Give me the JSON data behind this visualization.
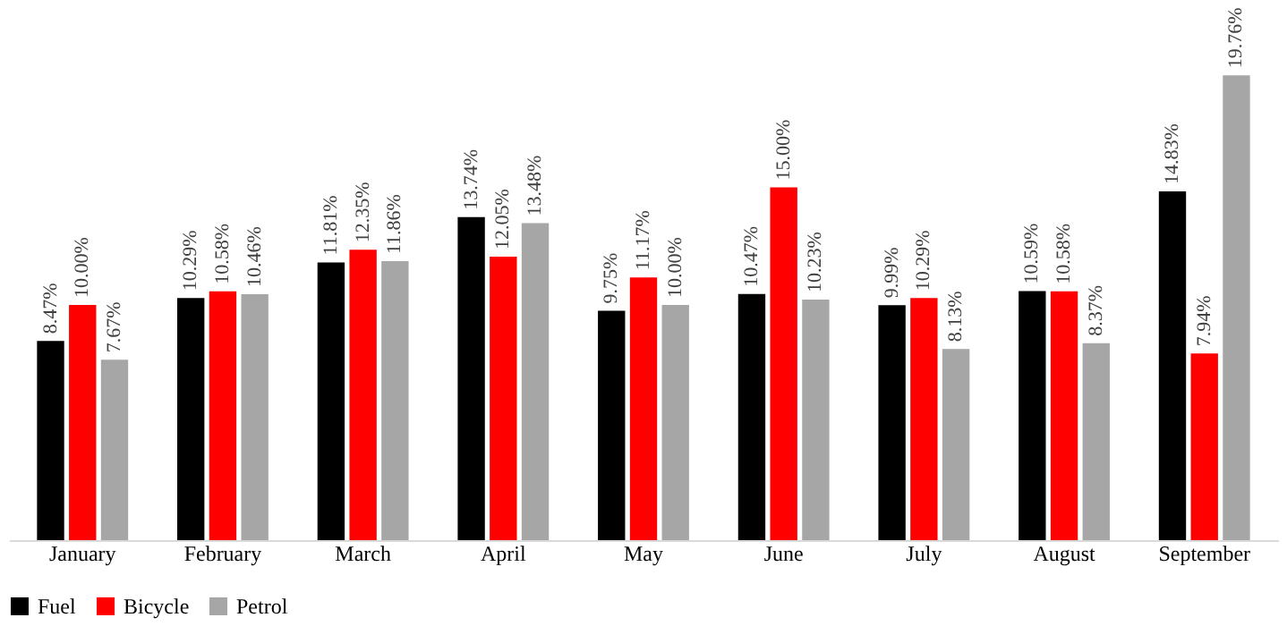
{
  "chart_data": {
    "type": "bar",
    "categories": [
      "January",
      "February",
      "March",
      "April",
      "May",
      "June",
      "July",
      "August",
      "September"
    ],
    "series": [
      {
        "name": "Fuel",
        "color": "#000000",
        "values": [
          8.47,
          10.29,
          11.81,
          13.74,
          9.75,
          10.47,
          9.99,
          10.59,
          14.83
        ],
        "value_labels": [
          "8.47%",
          "10.29%",
          "11.81%",
          "13.74%",
          "9.75%",
          "10.47%",
          "9.99%",
          "10.59%",
          "14.83%"
        ]
      },
      {
        "name": "Bicycle",
        "color": "#ff0000",
        "values": [
          10.0,
          10.58,
          12.35,
          12.05,
          11.17,
          15.0,
          10.29,
          10.58,
          7.94
        ],
        "value_labels": [
          "10.00%",
          "10.58%",
          "12.35%",
          "12.05%",
          "11.17%",
          "15.00%",
          "10.29%",
          "10.58%",
          "7.94%"
        ]
      },
      {
        "name": "Petrol",
        "color": "#a6a6a6",
        "values": [
          7.67,
          10.46,
          11.86,
          13.48,
          10.0,
          10.23,
          8.13,
          8.37,
          19.76
        ],
        "value_labels": [
          "7.67%",
          "10.46%",
          "11.86%",
          "13.48%",
          "10.00%",
          "10.23%",
          "8.13%",
          "8.37%",
          "19.76%"
        ]
      }
    ],
    "legend": "bottom",
    "grid": false
  }
}
